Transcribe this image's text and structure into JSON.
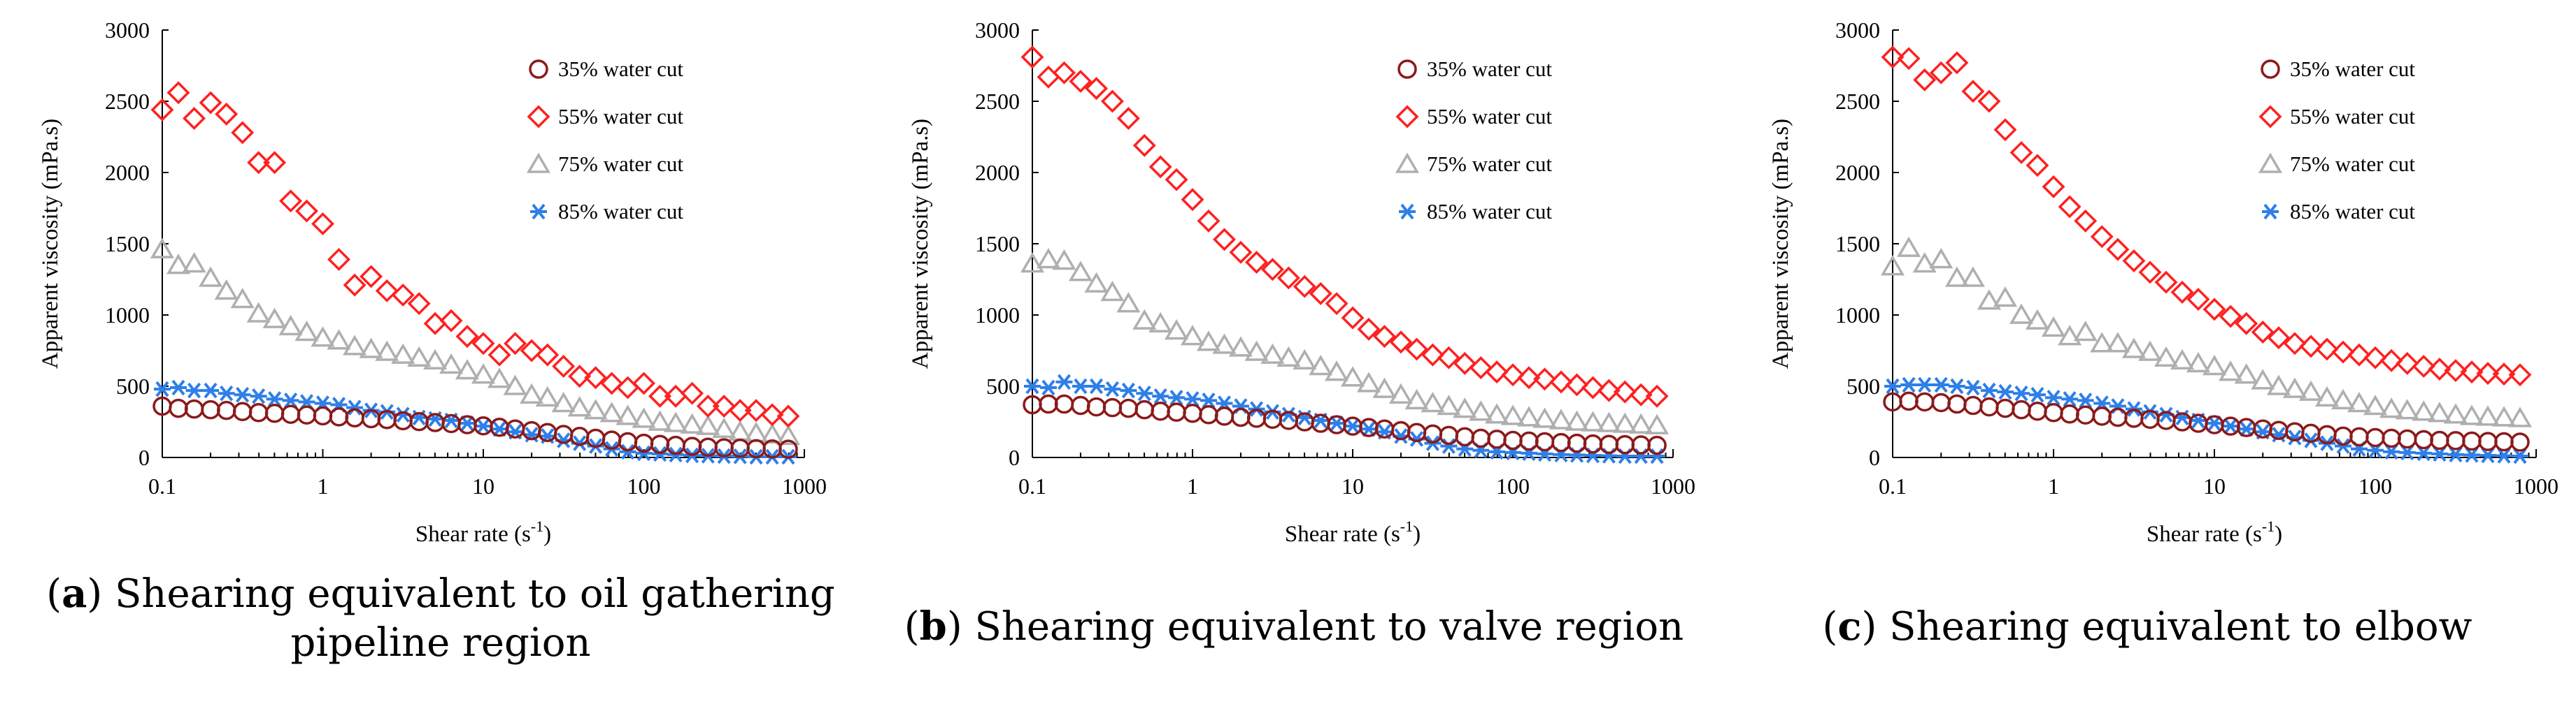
{
  "colors": {
    "series": [
      "#8B1A1A",
      "#FF2020",
      "#AFAFAF",
      "#2E7FE8"
    ],
    "axis": "#000000"
  },
  "captions": [
    {
      "letter": "a",
      "line1": ") Shearing equivalent to oil gathering",
      "line2": "pipeline region"
    },
    {
      "letter": "b",
      "line1": ") Shearing equivalent to valve region",
      "line2": ""
    },
    {
      "letter": "c",
      "line1": ") Shearing equivalent to elbow",
      "line2": ""
    }
  ],
  "chart_data": [
    {
      "type": "scatter",
      "panel": "a",
      "xscale": "log",
      "xlim": [
        0.1,
        1000
      ],
      "ylim": [
        0,
        3000
      ],
      "xticks": [
        0.1,
        1,
        10,
        100,
        1000
      ],
      "xticklabels": [
        "0.1",
        "1",
        "10",
        "100",
        "1000"
      ],
      "yticks": [
        0,
        500,
        1000,
        1500,
        2000,
        2500,
        3000
      ],
      "yticklabels": [
        "0",
        "500",
        "1000",
        "1500",
        "2000",
        "2500",
        "3000"
      ],
      "xlabel": "Shear rate (s",
      "xlabel_sup": "-1",
      "xlabel_end": ")",
      "ylabel": "Apparent viscosity (mPa.s)",
      "legend_position": "top-right",
      "x": [
        0.1,
        0.126,
        0.158,
        0.2,
        0.251,
        0.316,
        0.398,
        0.501,
        0.631,
        0.794,
        1,
        1.26,
        1.58,
        2,
        2.51,
        3.16,
        3.98,
        5.01,
        6.31,
        7.94,
        10,
        12.6,
        15.8,
        20,
        25.1,
        31.6,
        39.8,
        50.1,
        63.1,
        79.4,
        100,
        126,
        158,
        200,
        251,
        316,
        398,
        501,
        631,
        794
      ],
      "series": [
        {
          "name": "35% water cut",
          "marker": "circle",
          "values": [
            360,
            345,
            340,
            335,
            330,
            322,
            315,
            310,
            303,
            298,
            292,
            285,
            278,
            272,
            266,
            258,
            252,
            245,
            238,
            230,
            222,
            212,
            200,
            188,
            175,
            162,
            148,
            135,
            122,
            110,
            100,
            92,
            85,
            78,
            72,
            68,
            65,
            62,
            60,
            58
          ]
        },
        {
          "name": "55% water cut",
          "marker": "diamond",
          "values": [
            2440,
            2560,
            2380,
            2490,
            2410,
            2280,
            2070,
            2070,
            1800,
            1730,
            1640,
            1390,
            1210,
            1270,
            1170,
            1140,
            1080,
            940,
            960,
            850,
            800,
            720,
            800,
            750,
            720,
            640,
            570,
            560,
            520,
            490,
            520,
            430,
            430,
            450,
            360,
            360,
            330,
            330,
            300,
            290
          ]
        },
        {
          "name": "75% water cut",
          "marker": "triangle",
          "values": [
            1460,
            1350,
            1360,
            1260,
            1170,
            1110,
            1010,
            970,
            920,
            880,
            840,
            820,
            780,
            760,
            740,
            720,
            700,
            680,
            650,
            610,
            580,
            550,
            500,
            440,
            420,
            380,
            350,
            330,
            310,
            290,
            270,
            250,
            240,
            230,
            220,
            200,
            180,
            170,
            160,
            150
          ]
        },
        {
          "name": "85% water cut",
          "marker": "asterisk",
          "values": [
            480,
            490,
            470,
            470,
            450,
            440,
            430,
            410,
            400,
            390,
            380,
            370,
            350,
            330,
            320,
            300,
            280,
            270,
            260,
            240,
            220,
            200,
            180,
            160,
            150,
            120,
            100,
            80,
            60,
            40,
            30,
            25,
            20,
            15,
            12,
            10,
            8,
            5,
            5,
            5
          ]
        }
      ]
    },
    {
      "type": "scatter",
      "panel": "b",
      "xscale": "log",
      "xlim": [
        0.1,
        1000
      ],
      "ylim": [
        0,
        3000
      ],
      "xticks": [
        0.1,
        1,
        10,
        100,
        1000
      ],
      "xticklabels": [
        "0.1",
        "1",
        "10",
        "100",
        "1000"
      ],
      "yticks": [
        0,
        500,
        1000,
        1500,
        2000,
        2500,
        3000
      ],
      "yticklabels": [
        "0",
        "500",
        "1000",
        "1500",
        "2000",
        "2500",
        "3000"
      ],
      "xlabel": "Shear rate (s",
      "xlabel_sup": "-1",
      "xlabel_end": ")",
      "ylabel": "Apparent viscosity (mPa.s)",
      "legend_position": "top-right",
      "x": [
        0.1,
        0.126,
        0.158,
        0.2,
        0.251,
        0.316,
        0.398,
        0.501,
        0.631,
        0.794,
        1,
        1.26,
        1.58,
        2,
        2.51,
        3.16,
        3.98,
        5.01,
        6.31,
        7.94,
        10,
        12.6,
        15.8,
        20,
        25.1,
        31.6,
        39.8,
        50.1,
        63.1,
        79.4,
        100,
        126,
        158,
        200,
        251,
        316,
        398,
        501,
        631,
        794
      ],
      "series": [
        {
          "name": "35% water cut",
          "marker": "circle",
          "values": [
            370,
            375,
            375,
            365,
            355,
            350,
            345,
            335,
            325,
            318,
            310,
            300,
            290,
            282,
            275,
            268,
            260,
            250,
            240,
            230,
            220,
            210,
            200,
            188,
            175,
            165,
            155,
            145,
            135,
            128,
            120,
            115,
            110,
            105,
            100,
            95,
            92,
            90,
            88,
            85
          ]
        },
        {
          "name": "55% water cut",
          "marker": "diamond",
          "values": [
            2810,
            2670,
            2700,
            2640,
            2590,
            2500,
            2380,
            2190,
            2040,
            1950,
            1810,
            1660,
            1530,
            1440,
            1370,
            1320,
            1260,
            1200,
            1150,
            1080,
            980,
            900,
            850,
            810,
            760,
            720,
            700,
            660,
            630,
            600,
            580,
            560,
            550,
            530,
            510,
            490,
            470,
            460,
            440,
            430
          ]
        },
        {
          "name": "75% water cut",
          "marker": "triangle",
          "values": [
            1360,
            1390,
            1380,
            1300,
            1220,
            1160,
            1080,
            960,
            940,
            890,
            850,
            810,
            790,
            770,
            740,
            720,
            700,
            680,
            640,
            600,
            560,
            520,
            480,
            440,
            400,
            380,
            360,
            340,
            320,
            300,
            290,
            280,
            270,
            260,
            250,
            245,
            240,
            235,
            230,
            225
          ]
        },
        {
          "name": "85% water cut",
          "marker": "asterisk",
          "values": [
            500,
            490,
            530,
            500,
            500,
            480,
            470,
            450,
            430,
            420,
            410,
            400,
            380,
            360,
            340,
            320,
            300,
            280,
            260,
            240,
            220,
            200,
            180,
            150,
            130,
            100,
            80,
            60,
            50,
            40,
            35,
            30,
            25,
            20,
            18,
            15,
            12,
            10,
            10,
            10
          ]
        }
      ]
    },
    {
      "type": "scatter",
      "panel": "c",
      "xscale": "log",
      "xlim": [
        0.1,
        1000
      ],
      "ylim": [
        0,
        3000
      ],
      "xticks": [
        0.1,
        1,
        10,
        100,
        1000
      ],
      "xticklabels": [
        "0.1",
        "1",
        "10",
        "100",
        "1000"
      ],
      "yticks": [
        0,
        500,
        1000,
        1500,
        2000,
        2500,
        3000
      ],
      "yticklabels": [
        "0",
        "500",
        "1000",
        "1500",
        "2000",
        "2500",
        "3000"
      ],
      "xlabel": "Shear rate (s",
      "xlabel_sup": "-1",
      "xlabel_end": ")",
      "ylabel": "Apparent viscosity (mPa.s)",
      "legend_position": "top-right",
      "x": [
        0.1,
        0.126,
        0.158,
        0.2,
        0.251,
        0.316,
        0.398,
        0.501,
        0.631,
        0.794,
        1,
        1.26,
        1.58,
        2,
        2.51,
        3.16,
        3.98,
        5.01,
        6.31,
        7.94,
        10,
        12.6,
        15.8,
        20,
        25.1,
        31.6,
        39.8,
        50.1,
        63.1,
        79.4,
        100,
        126,
        158,
        200,
        251,
        316,
        398,
        501,
        631,
        794
      ],
      "series": [
        {
          "name": "35% water cut",
          "marker": "circle",
          "values": [
            390,
            395,
            390,
            385,
            375,
            365,
            355,
            345,
            335,
            325,
            315,
            305,
            298,
            290,
            282,
            275,
            268,
            260,
            250,
            240,
            230,
            220,
            210,
            200,
            190,
            180,
            170,
            160,
            150,
            145,
            140,
            135,
            130,
            125,
            120,
            118,
            115,
            112,
            110,
            108
          ]
        },
        {
          "name": "55% water cut",
          "marker": "diamond",
          "values": [
            2810,
            2800,
            2650,
            2700,
            2770,
            2570,
            2500,
            2300,
            2140,
            2050,
            1900,
            1760,
            1660,
            1550,
            1460,
            1380,
            1300,
            1230,
            1160,
            1110,
            1040,
            990,
            940,
            880,
            840,
            800,
            780,
            760,
            740,
            720,
            700,
            680,
            660,
            640,
            620,
            610,
            600,
            590,
            585,
            580
          ]
        },
        {
          "name": "75% water cut",
          "marker": "triangle",
          "values": [
            1340,
            1470,
            1360,
            1390,
            1260,
            1260,
            1100,
            1120,
            1000,
            960,
            910,
            850,
            880,
            800,
            800,
            760,
            740,
            700,
            680,
            660,
            640,
            600,
            580,
            540,
            500,
            480,
            460,
            420,
            400,
            380,
            360,
            340,
            330,
            320,
            310,
            300,
            290,
            285,
            280,
            275
          ]
        },
        {
          "name": "85% water cut",
          "marker": "asterisk",
          "values": [
            500,
            510,
            510,
            510,
            500,
            490,
            470,
            460,
            450,
            440,
            420,
            410,
            400,
            380,
            360,
            340,
            320,
            300,
            280,
            260,
            240,
            220,
            200,
            180,
            160,
            140,
            120,
            100,
            80,
            60,
            50,
            40,
            35,
            30,
            25,
            20,
            18,
            15,
            12,
            10
          ]
        }
      ]
    }
  ]
}
